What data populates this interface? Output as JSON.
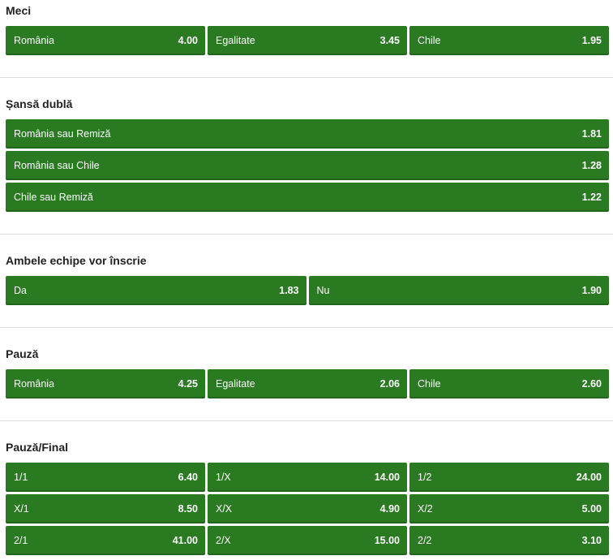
{
  "markets": {
    "match": {
      "title": "Meci",
      "rows": [
        [
          {
            "label": "România",
            "odd": "4.00"
          },
          {
            "label": "Egalitate",
            "odd": "3.45"
          },
          {
            "label": "Chile",
            "odd": "1.95"
          }
        ]
      ]
    },
    "double_chance": {
      "title": "Șansă dublă",
      "rows": [
        [
          {
            "label": "România sau Remiză",
            "odd": "1.81"
          }
        ],
        [
          {
            "label": "România sau Chile",
            "odd": "1.28"
          }
        ],
        [
          {
            "label": "Chile sau Remiză",
            "odd": "1.22"
          }
        ]
      ]
    },
    "both_teams_score": {
      "title": "Ambele echipe vor înscrie",
      "rows": [
        [
          {
            "label": "Da",
            "odd": "1.83"
          },
          {
            "label": "Nu",
            "odd": "1.90"
          }
        ]
      ]
    },
    "half_time": {
      "title": "Pauză",
      "rows": [
        [
          {
            "label": "România",
            "odd": "4.25"
          },
          {
            "label": "Egalitate",
            "odd": "2.06"
          },
          {
            "label": "Chile",
            "odd": "2.60"
          }
        ]
      ]
    },
    "half_full": {
      "title": "Pauză/Final",
      "rows": [
        [
          {
            "label": "1/1",
            "odd": "6.40"
          },
          {
            "label": "1/X",
            "odd": "14.00"
          },
          {
            "label": "1/2",
            "odd": "24.00"
          }
        ],
        [
          {
            "label": "X/1",
            "odd": "8.50"
          },
          {
            "label": "X/X",
            "odd": "4.90"
          },
          {
            "label": "X/2",
            "odd": "5.00"
          }
        ],
        [
          {
            "label": "2/1",
            "odd": "41.00"
          },
          {
            "label": "2/X",
            "odd": "15.00"
          },
          {
            "label": "2/2",
            "odd": "3.10"
          }
        ]
      ]
    }
  },
  "colors": {
    "button_bg": "#2a7a22",
    "text_on_button": "#ffffff",
    "title": "#222222",
    "divider": "#dcdcdc"
  }
}
